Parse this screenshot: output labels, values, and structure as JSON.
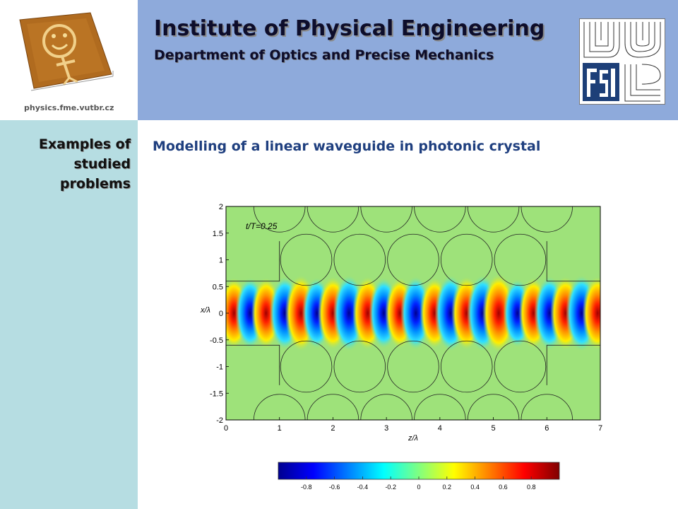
{
  "header": {
    "title": "Institute of Physical Engineering",
    "subtitle": "Department of Optics and Precise Mechanics",
    "site_url": "physics.fme.vutbr.cz"
  },
  "sidebar": {
    "section_title": "Examples of studied problems"
  },
  "main": {
    "heading": "Modelling of a linear waveguide in photonic crystal"
  },
  "chart_data": {
    "type": "heatmap",
    "annotation": "t/T=0.25",
    "xlabel": "z/λ",
    "ylabel": "x/λ",
    "xlim": [
      0,
      7
    ],
    "ylim": [
      -2,
      2
    ],
    "x_ticks": [
      "0",
      "1",
      "2",
      "3",
      "4",
      "5",
      "6",
      "7"
    ],
    "y_ticks": [
      "2",
      "1.5",
      "1",
      "0.5",
      "0",
      "-0.5",
      "-1",
      "-1.5",
      "-2"
    ],
    "colorbar": {
      "range": [
        -1,
        1
      ],
      "ticks": [
        "-0.8",
        "-0.6",
        "-0.4",
        "-0.2",
        "0",
        "0.2",
        "0.4",
        "0.6",
        "0.8"
      ],
      "colors": [
        "#00008f",
        "#0000ff",
        "#0080ff",
        "#00ffff",
        "#80ff80",
        "#ffff00",
        "#ff8000",
        "#ff0000",
        "#800000"
      ]
    },
    "field_oscillations_z": [
      0.15,
      0.45,
      0.75,
      1.1,
      1.4,
      1.7,
      2.0,
      2.3,
      2.65,
      2.95,
      3.25,
      3.55,
      3.9,
      4.2,
      4.5,
      4.8,
      5.1,
      5.45,
      5.75,
      6.05,
      6.35,
      6.65,
      6.95
    ],
    "field_amplitudes": [
      0.6,
      -0.6,
      0.6,
      -0.7,
      0.8,
      -0.6,
      0.7,
      -0.8,
      0.7,
      -0.6,
      0.6,
      -0.7,
      0.6,
      -0.8,
      0.7,
      -0.8,
      0.9,
      -0.5,
      0.6,
      -0.7,
      0.7,
      -0.8,
      0.7
    ]
  }
}
